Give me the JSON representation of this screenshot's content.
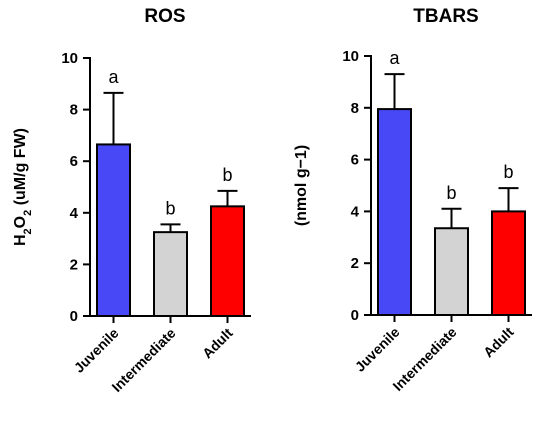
{
  "chart_data": [
    {
      "type": "bar",
      "title": "ROS",
      "ylabel": "H2O2 (uM/g FW)",
      "ylabel_parts": [
        {
          "text": "H",
          "sub": false
        },
        {
          "text": "2",
          "sub": true
        },
        {
          "text": "O",
          "sub": false
        },
        {
          "text": "2",
          "sub": true
        },
        {
          "text": " (uM/g FW)",
          "sub": false
        }
      ],
      "categories": [
        "Juvenile",
        "Intermediate",
        "Adult"
      ],
      "values": [
        6.65,
        3.25,
        4.25
      ],
      "errors": [
        2.0,
        0.3,
        0.6
      ],
      "significance": [
        "a",
        "b",
        "b"
      ],
      "colors": [
        "#4848f7",
        "#d3d3d3",
        "#ff0000"
      ],
      "ylim": [
        0,
        10
      ],
      "yticks": [
        "0",
        "2",
        "4",
        "6",
        "8",
        "10"
      ],
      "grid": false
    },
    {
      "type": "bar",
      "title": "TBARS",
      "ylabel": "(nmol g−1)",
      "ylabel_parts": [
        {
          "text": "(nmol g−1)",
          "sub": false
        }
      ],
      "categories": [
        "Juvenile",
        "Intermediate",
        "Adult"
      ],
      "values": [
        7.95,
        3.35,
        4.0
      ],
      "errors": [
        1.35,
        0.75,
        0.9
      ],
      "significance": [
        "a",
        "b",
        "b"
      ],
      "colors": [
        "#4848f7",
        "#d3d3d3",
        "#ff0000"
      ],
      "ylim": [
        0,
        10
      ],
      "yticks": [
        "0",
        "2",
        "4",
        "6",
        "8",
        "10"
      ],
      "grid": false
    }
  ]
}
